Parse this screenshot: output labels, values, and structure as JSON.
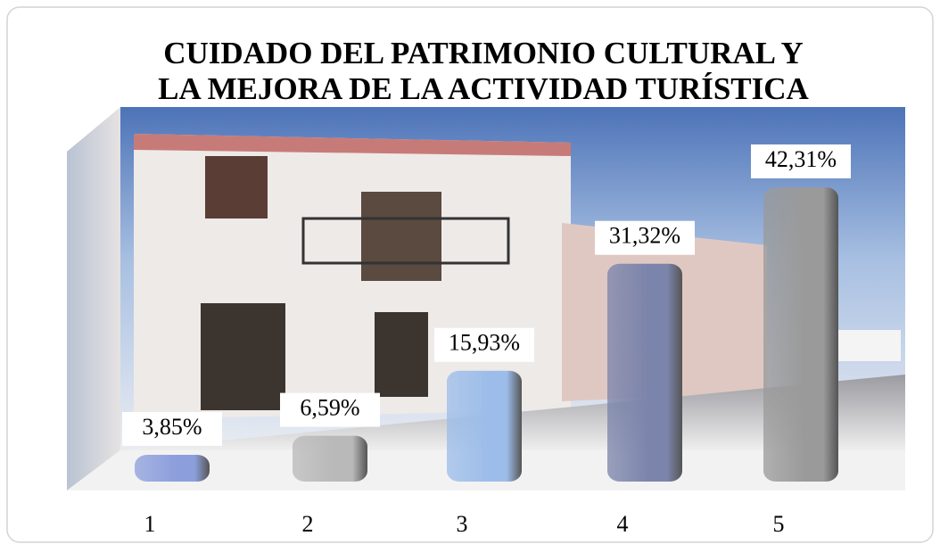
{
  "chart_data": {
    "type": "bar",
    "title": [
      "CUIDADO DEL PATRIMONIO CULTURAL Y",
      "LA MEJORA DE LA ACTIVIDAD TURÍSTICA"
    ],
    "categories": [
      "1",
      "2",
      "3",
      "4",
      "5"
    ],
    "values": [
      3.85,
      6.59,
      15.93,
      31.32,
      42.31
    ],
    "value_labels": [
      "3,85%",
      "6,59%",
      "15,93%",
      "31,32%",
      "42,31%"
    ],
    "colors": [
      "#8c9fdc",
      "#b9b9b9",
      "#9cbde9",
      "#7b84ab",
      "#9a9a9a"
    ]
  }
}
